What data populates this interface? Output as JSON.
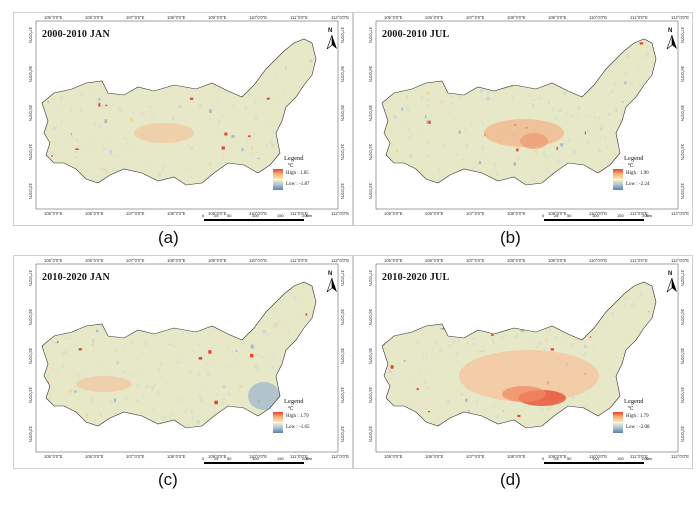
{
  "panels": [
    {
      "title": "2000-2010 JAN",
      "caption": "(a)",
      "legend_high": "High : 1.85",
      "legend_low": "Low : -1.87",
      "hot": "low"
    },
    {
      "title": "2000-2010 JUL",
      "caption": "(b)",
      "legend_high": "High : 1.90",
      "legend_low": "Low : -2.24",
      "hot": "mid"
    },
    {
      "title": "2010-2020 JAN",
      "caption": "(c)",
      "legend_high": "High : 1.79",
      "legend_low": "Low : -1.65",
      "hot": "cold"
    },
    {
      "title": "2010-2020 JUL",
      "caption": "(d)",
      "legend_high": "High : 1.79",
      "legend_low": "Low : -2.08",
      "hot": "high"
    }
  ],
  "legend": {
    "title": "Legend",
    "unit": "℃"
  },
  "north_label": "N",
  "scale_bar": {
    "ticks": [
      "0",
      "25",
      "50",
      "100",
      "150",
      "200"
    ],
    "unit": "Km"
  },
  "longitudes": [
    "105°0'0\"E",
    "106°0'0\"E",
    "107°0'0\"E",
    "108°0'0\"E",
    "109°0'0\"E",
    "110°0'0\"E",
    "111°0'0\"E",
    "112°0'0\"E"
  ],
  "latitudes": [
    "37°0'0\"N",
    "36°0'0\"N",
    "35°0'0\"N",
    "34°0'0\"N",
    "33°0'0\"N"
  ],
  "colors": {
    "high": "#e8452c",
    "mid": "#f4ecc8",
    "low": "#5c7fa8",
    "base": "#e6e8c8"
  }
}
